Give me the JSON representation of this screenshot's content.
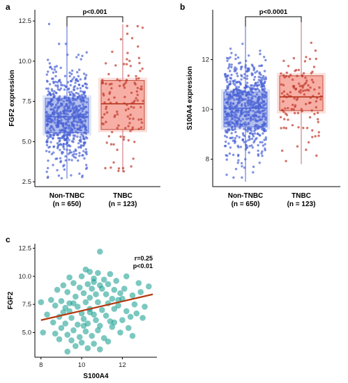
{
  "colors": {
    "non_tnbc_fill": "#a9b7ea",
    "non_tnbc_point": "#4a63d6",
    "non_tnbc_line": "#4a63d6",
    "tnbc_fill": "#f7a69b",
    "tnbc_point": "#c0392b",
    "tnbc_line": "#b5341e",
    "tnbc_whisker": "#c86a72",
    "scatter_point": "#0f9a8c",
    "fit_line": "#b23a10"
  },
  "panels": {
    "a": {
      "letter": "a"
    },
    "b": {
      "letter": "b"
    },
    "c": {
      "letter": "c"
    }
  },
  "chart_data": [
    {
      "id": "a",
      "type": "box",
      "ylabel": "FGF2 expression",
      "ylim": [
        2.2,
        13.2
      ],
      "yticks": [
        "2.5",
        "5.0",
        "7.5",
        "10.0",
        "12.5"
      ],
      "categories": [
        "Non-TNBC\n(n = 650)",
        "TNBC\n(n = 123)"
      ],
      "category_names": [
        "Non-TNBC",
        "TNBC"
      ],
      "category_counts": [
        "(n = 650)",
        "(n = 123)"
      ],
      "boxes": [
        {
          "name": "Non-TNBC",
          "min": 2.7,
          "q1": 5.55,
          "median": 6.55,
          "q3": 7.7,
          "max": 12.7
        },
        {
          "name": "TNBC",
          "min": 3.1,
          "q1": 5.75,
          "median": 7.35,
          "q3": 8.8,
          "max": 12.3
        }
      ],
      "annotation": "p<0.001"
    },
    {
      "id": "b",
      "type": "box",
      "ylabel": "S100A4 expression",
      "ylim": [
        6.9,
        14.0
      ],
      "yticks": [
        "8",
        "10",
        "12"
      ],
      "categories": [
        "Non-TNBC\n(n = 650)",
        "TNBC\n(n = 123)"
      ],
      "category_names": [
        "Non-TNBC",
        "TNBC"
      ],
      "category_counts": [
        "(n = 650)",
        "(n = 123)"
      ],
      "boxes": [
        {
          "name": "Non-TNBC",
          "min": 7.1,
          "q1": 9.3,
          "median": 10.05,
          "q3": 10.7,
          "max": 13.7
        },
        {
          "name": "TNBC",
          "min": 7.8,
          "q1": 9.95,
          "median": 10.5,
          "q3": 11.35,
          "max": 13.7
        }
      ],
      "annotation": "p<0.0001"
    },
    {
      "id": "c",
      "type": "scatter",
      "xlabel": "S100A4",
      "ylabel": "FGF2",
      "xlim": [
        7.7,
        13.7
      ],
      "ylim": [
        2.8,
        12.9
      ],
      "xticks": [
        "8",
        "10",
        "12"
      ],
      "yticks": [
        "5.0",
        "7.5",
        "10.0",
        "12.5"
      ],
      "annotations": [
        "r=0.25",
        "p<0.01"
      ],
      "fit": {
        "x": [
          8.0,
          13.5
        ],
        "y": [
          6.1,
          8.4
        ]
      },
      "points": [
        [
          10.9,
          12.2
        ],
        [
          10.2,
          10.6
        ],
        [
          10.4,
          10.4
        ],
        [
          10.8,
          10.3
        ],
        [
          11.4,
          10.2
        ],
        [
          12.2,
          10.0
        ],
        [
          9.4,
          9.9
        ],
        [
          10.0,
          10.0
        ],
        [
          10.6,
          9.8
        ],
        [
          11.1,
          9.7
        ],
        [
          11.7,
          9.6
        ],
        [
          12.8,
          9.4
        ],
        [
          13.3,
          9.1
        ],
        [
          9.6,
          9.4
        ],
        [
          10.3,
          9.3
        ],
        [
          10.9,
          9.2
        ],
        [
          11.3,
          9.3
        ],
        [
          9.1,
          9.2
        ],
        [
          9.9,
          9.0
        ],
        [
          10.5,
          8.9
        ],
        [
          11.0,
          8.9
        ],
        [
          11.6,
          8.8
        ],
        [
          12.1,
          8.9
        ],
        [
          8.8,
          8.8
        ],
        [
          9.3,
          8.6
        ],
        [
          10.1,
          8.5
        ],
        [
          10.7,
          8.4
        ],
        [
          11.2,
          8.4
        ],
        [
          12.5,
          8.3
        ],
        [
          9.7,
          8.2
        ],
        [
          10.4,
          8.1
        ],
        [
          11.5,
          8.0
        ],
        [
          12.0,
          8.0
        ],
        [
          8.5,
          7.9
        ],
        [
          9.0,
          7.8
        ],
        [
          9.6,
          7.6
        ],
        [
          10.2,
          7.7
        ],
        [
          10.8,
          7.7
        ],
        [
          11.3,
          7.6
        ],
        [
          11.8,
          7.4
        ],
        [
          12.6,
          7.5
        ],
        [
          13.1,
          7.3
        ],
        [
          8.0,
          7.7
        ],
        [
          8.7,
          7.4
        ],
        [
          9.2,
          7.2
        ],
        [
          9.8,
          7.3
        ],
        [
          10.4,
          7.1
        ],
        [
          11.0,
          7.0
        ],
        [
          11.6,
          7.1
        ],
        [
          12.2,
          6.9
        ],
        [
          9.4,
          6.9
        ],
        [
          10.0,
          6.7
        ],
        [
          10.6,
          6.6
        ],
        [
          11.2,
          6.5
        ],
        [
          12.7,
          6.7
        ],
        [
          8.3,
          6.6
        ],
        [
          8.9,
          6.4
        ],
        [
          9.5,
          6.3
        ],
        [
          10.1,
          6.2
        ],
        [
          10.7,
          6.1
        ],
        [
          11.4,
          6.0
        ],
        [
          12.0,
          6.1
        ],
        [
          13.0,
          6.3
        ],
        [
          8.6,
          5.9
        ],
        [
          9.2,
          5.8
        ],
        [
          9.8,
          5.7
        ],
        [
          10.3,
          5.8
        ],
        [
          10.9,
          5.6
        ],
        [
          11.5,
          5.5
        ],
        [
          12.3,
          5.4
        ],
        [
          9.0,
          5.4
        ],
        [
          9.6,
          5.2
        ],
        [
          10.2,
          5.1
        ],
        [
          10.8,
          5.2
        ],
        [
          11.9,
          5.0
        ],
        [
          8.1,
          5.0
        ],
        [
          8.7,
          4.9
        ],
        [
          9.3,
          4.8
        ],
        [
          9.9,
          4.6
        ],
        [
          10.5,
          4.7
        ],
        [
          11.1,
          4.5
        ],
        [
          12.5,
          4.7
        ],
        [
          9.5,
          4.3
        ],
        [
          10.0,
          4.1
        ],
        [
          10.6,
          4.0
        ],
        [
          11.3,
          4.2
        ],
        [
          8.9,
          4.4
        ],
        [
          9.7,
          3.8
        ],
        [
          10.3,
          3.6
        ],
        [
          10.9,
          3.5
        ],
        [
          9.3,
          3.3
        ],
        [
          11.6,
          5.9
        ],
        [
          10.4,
          6.8
        ],
        [
          11.8,
          7.9
        ],
        [
          9.1,
          6.8
        ],
        [
          12.9,
          8.6
        ],
        [
          10.6,
          9.5
        ],
        [
          11.9,
          8.5
        ],
        [
          9.4,
          7.6
        ],
        [
          10.1,
          5.6
        ],
        [
          12.4,
          6.4
        ]
      ]
    }
  ]
}
